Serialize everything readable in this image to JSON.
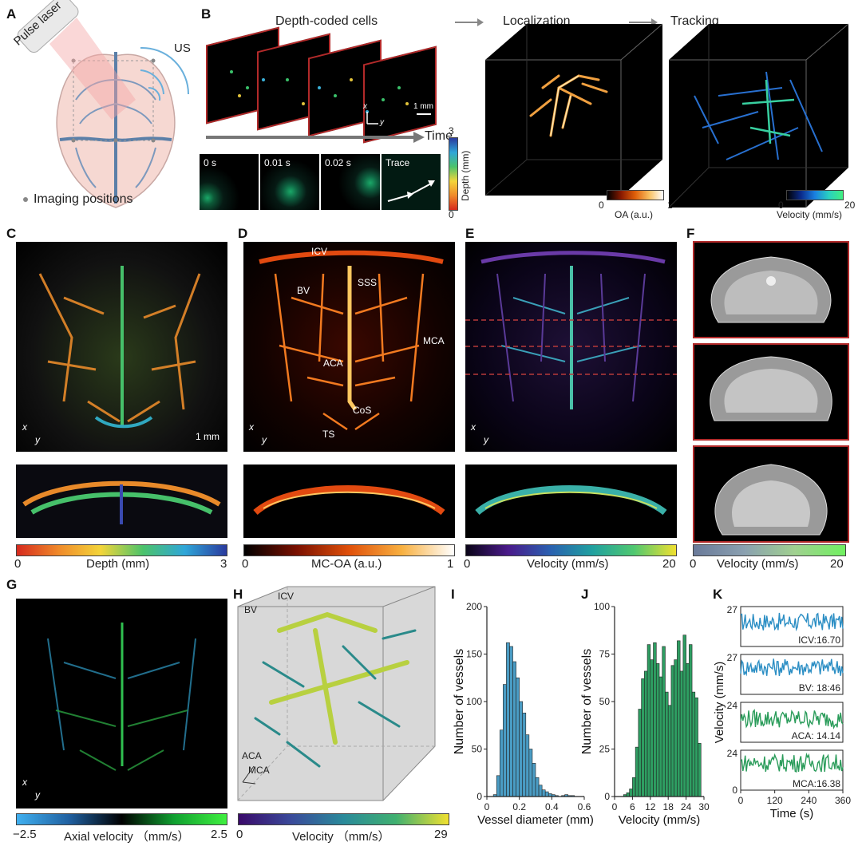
{
  "panels": {
    "A": {
      "letter": "A",
      "laser": "Pulse laser",
      "us": "US",
      "legend": "Imaging positions"
    },
    "B": {
      "letter": "B",
      "title1": "Depth-coded cells",
      "title2": "Localization",
      "title3": "Tracking",
      "scale": "1 mm",
      "time": "Time",
      "frames": [
        "0 s",
        "0.01 s",
        "0.02 s",
        "Trace"
      ],
      "depth_cbar": {
        "label": "Depth (mm)",
        "min": "0",
        "max": "3"
      },
      "oa_cbar": {
        "label": "OA (a.u.)",
        "min": "0",
        "max": "1"
      },
      "vel_cbar": {
        "label": "Velocity (mm/s)",
        "min": "0",
        "max": "20"
      },
      "axes": {
        "x": "x",
        "y": "y"
      }
    },
    "C": {
      "letter": "C",
      "scale": "1 mm",
      "cbar": {
        "label": "Depth (mm)",
        "min": "0",
        "max": "3"
      }
    },
    "D": {
      "letter": "D",
      "labels": {
        "icv": "ICV",
        "sss": "SSS",
        "bv": "BV",
        "mca": "MCA",
        "aca": "ACA",
        "cos": "CoS",
        "ts": "TS"
      },
      "cbar": {
        "label": "MC-OA (a.u.)",
        "min": "0",
        "max": "1"
      }
    },
    "E": {
      "letter": "E",
      "cbar": {
        "label": "Velocity (mm/s)",
        "min": "0",
        "max": "20"
      }
    },
    "F": {
      "letter": "F",
      "cbar": {
        "label": "Velocity (mm/s)",
        "min": "0",
        "max": "20"
      }
    },
    "G": {
      "letter": "G",
      "cbar": {
        "label": "Axial velocity （mm/s）",
        "min": "−2.5",
        "max": "2.5"
      }
    },
    "H": {
      "letter": "H",
      "labels": {
        "icv": "ICV",
        "bv": "BV",
        "aca": "ACA",
        "mca": "MCA"
      },
      "cbar": {
        "label": "Velocity （mm/s）",
        "min": "0",
        "max": "29"
      }
    },
    "I": {
      "letter": "I"
    },
    "J": {
      "letter": "J"
    },
    "K": {
      "letter": "K"
    }
  },
  "colors": {
    "histI": "#4a9cc4",
    "histJ": "#2e9e62",
    "traceBlue": "#2b8ec4",
    "traceGreen": "#2a9c5a",
    "frameRed": "#b22a2a"
  },
  "chart_data": [
    {
      "type": "bar",
      "panel": "I",
      "xlabel": "Vessel diameter (mm)",
      "ylabel": "Number of vessels",
      "xlim": [
        0,
        0.6
      ],
      "ylim": [
        0,
        200
      ],
      "xticks": [
        "0",
        "0.2",
        "0.4",
        "0.6"
      ],
      "yticks": [
        "0",
        "50",
        "100",
        "150",
        "200"
      ],
      "bin_width": 0.02,
      "bin_starts": [
        0.04,
        0.06,
        0.08,
        0.1,
        0.12,
        0.14,
        0.16,
        0.18,
        0.2,
        0.22,
        0.24,
        0.26,
        0.28,
        0.3,
        0.32,
        0.34,
        0.36,
        0.38,
        0.4,
        0.42,
        0.44,
        0.46,
        0.48,
        0.5,
        0.52
      ],
      "values": [
        2,
        22,
        70,
        118,
        162,
        158,
        142,
        125,
        100,
        88,
        65,
        50,
        35,
        20,
        12,
        7,
        5,
        3,
        2,
        1,
        0,
        1,
        2,
        1,
        1
      ]
    },
    {
      "type": "bar",
      "panel": "J",
      "xlabel": "Velocity (mm/s)",
      "ylabel": "Number of vessels",
      "xlim": [
        0,
        30
      ],
      "ylim": [
        0,
        100
      ],
      "xticks": [
        "0",
        "6",
        "12",
        "18",
        "24",
        "30"
      ],
      "yticks": [
        "0",
        "25",
        "50",
        "75",
        "100"
      ],
      "bin_width": 1,
      "bin_starts": [
        3,
        4,
        5,
        6,
        7,
        8,
        9,
        10,
        11,
        12,
        13,
        14,
        15,
        16,
        17,
        18,
        19,
        20,
        21,
        22,
        23,
        24,
        25,
        26,
        27,
        28
      ],
      "values": [
        1,
        2,
        4,
        10,
        26,
        46,
        62,
        66,
        80,
        72,
        81,
        70,
        63,
        79,
        55,
        48,
        69,
        72,
        82,
        66,
        85,
        70,
        80,
        55,
        52,
        28
      ]
    },
    {
      "type": "line",
      "panel": "K",
      "xlabel": "Time (s)",
      "ylabel": "Velocity (mm/s)",
      "xlim": [
        0,
        360
      ],
      "xticks": [
        "0",
        "120",
        "240",
        "360"
      ],
      "series": [
        {
          "name": "ICV:16.70",
          "ymax": "27",
          "ymax_value": 27,
          "mean": 16.7,
          "color": "#2b8ec4"
        },
        {
          "name": "BV: 18:46",
          "ymax": "27",
          "ymax_value": 27,
          "mean": 18.46,
          "color": "#2b8ec4"
        },
        {
          "name": "ACA: 14.14",
          "ymax": "24",
          "ymax_value": 24,
          "mean": 14.14,
          "color": "#2a9c5a"
        },
        {
          "name": "MCA:16.38",
          "ymax": "24",
          "ymax_value": 24,
          "mean": 16.38,
          "color": "#2a9c5a"
        }
      ]
    }
  ]
}
